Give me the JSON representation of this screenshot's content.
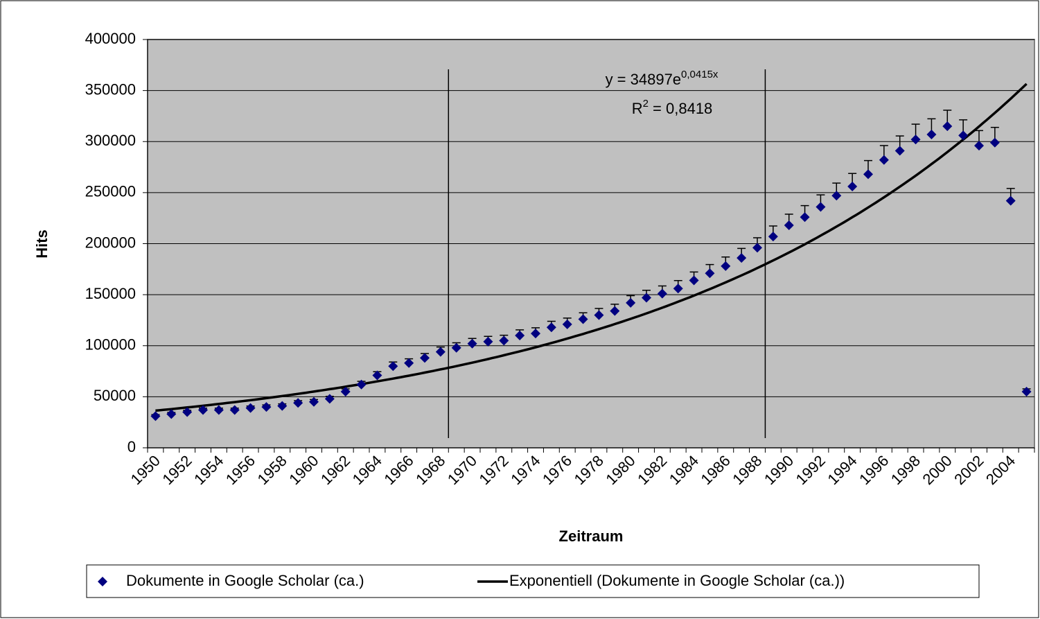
{
  "chart_data": {
    "type": "scatter",
    "x_label": "Zeitraum",
    "y_label": "Hits",
    "categories": [
      "1950",
      null,
      "1952",
      null,
      "1954",
      null,
      "1956",
      null,
      "1958",
      null,
      "1960",
      null,
      "1962",
      null,
      "1964",
      null,
      "1966",
      null,
      "1968",
      null,
      "1970",
      null,
      "1972",
      null,
      "1974",
      null,
      "1976",
      null,
      "1978",
      null,
      "1980",
      null,
      "1982",
      null,
      "1984",
      null,
      "1986",
      null,
      "1988",
      null,
      "1990",
      null,
      "1992",
      null,
      "1994",
      null,
      "1996",
      null,
      "1998",
      null,
      "2000",
      null,
      "2002",
      null,
      "2004",
      null
    ],
    "series": [
      {
        "name": "Dokumente in Google Scholar (ca.)",
        "color": "#000080",
        "values": [
          31000,
          33000,
          35000,
          37000,
          37000,
          37000,
          39000,
          40000,
          41000,
          44000,
          45000,
          48000,
          55000,
          62000,
          71000,
          80000,
          83000,
          88000,
          94000,
          98000,
          102000,
          104000,
          105000,
          110000,
          112000,
          118000,
          121000,
          126000,
          130000,
          134000,
          142000,
          147000,
          151000,
          156000,
          164000,
          171000,
          178000,
          186000,
          196000,
          207000,
          218000,
          226000,
          236000,
          247000,
          256000,
          268000,
          282000,
          291000,
          302000,
          307000,
          315000,
          306000,
          296000,
          299000,
          242000,
          55000
        ]
      }
    ],
    "error_percent": 5,
    "trendline": {
      "name": "Exponentiell (Dokumente in Google Scholar (ca.))",
      "color": "#000000",
      "coefficient": 34897,
      "exponent": 0.0415,
      "equation": "y = 34897e",
      "equation_exponent": "0,0415x",
      "r_squared_label": "R",
      "r_squared_sup": "2",
      "r_squared_value": " = 0,8418"
    },
    "ylim": [
      0,
      400000
    ],
    "yticks": [
      0,
      50000,
      100000,
      150000,
      200000,
      250000,
      300000,
      350000,
      400000
    ],
    "grid": true,
    "plot_background": "#c0c0c0"
  }
}
